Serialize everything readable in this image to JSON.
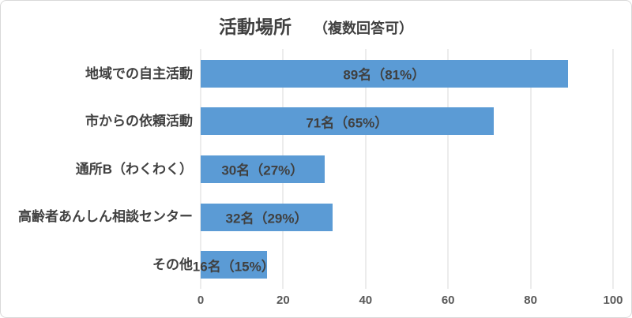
{
  "title": {
    "main": "活動場所",
    "sub": "（複数回答可）"
  },
  "colors": {
    "bar": "#5b9bd5",
    "label_text": "#404040",
    "gridline": "#d9d9d9",
    "tick_label": "#595959",
    "border": "#d9d9d9",
    "background": "#ffffff"
  },
  "chart_data": {
    "type": "bar",
    "orientation": "horizontal",
    "title": "活動場所　（複数回答可）",
    "categories": [
      "地域での自主活動",
      "市からの依頼活動",
      "通所B（わくわく）",
      "高齢者あんしん相談センター",
      "その他"
    ],
    "values": [
      89,
      71,
      30,
      32,
      16
    ],
    "percents": [
      81,
      65,
      27,
      29,
      15
    ],
    "bar_labels": [
      "89名（81%）",
      "71名（65%）",
      "30名（27%）",
      "32名（29%）",
      "16名（15%）"
    ],
    "xlabel": "",
    "ylabel": "",
    "xlim": [
      0,
      100
    ],
    "x_ticks": [
      0,
      20,
      40,
      60,
      80,
      100
    ],
    "grid": "vertical",
    "legend": "none"
  }
}
